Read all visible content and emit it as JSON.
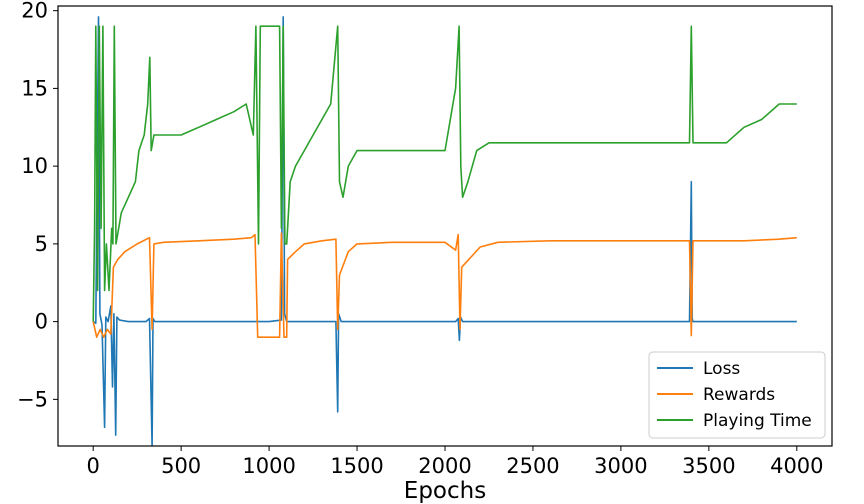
{
  "chart_data": {
    "type": "line",
    "title": "",
    "xlabel": "Epochs",
    "ylabel": "",
    "xlim": [
      -200,
      4200
    ],
    "ylim": [
      -8,
      20.3
    ],
    "xticks": [
      0,
      500,
      1000,
      1500,
      2000,
      2500,
      3000,
      3500,
      4000
    ],
    "yticks": [
      -5,
      0,
      5,
      10,
      15,
      20
    ],
    "ytick_labels": [
      "−5",
      "0",
      "5",
      "10",
      "15",
      "20"
    ],
    "grid": false,
    "legend": {
      "position": "bottom-right"
    },
    "series": [
      {
        "name": "Loss",
        "color": "#1f77b4",
        "points": [
          [
            0,
            0
          ],
          [
            15,
            -0.1
          ],
          [
            30,
            19.6
          ],
          [
            38,
            0.5
          ],
          [
            50,
            -0.2
          ],
          [
            65,
            -6.8
          ],
          [
            72,
            0.3
          ],
          [
            85,
            0
          ],
          [
            100,
            1
          ],
          [
            110,
            -4.2
          ],
          [
            118,
            0.5
          ],
          [
            128,
            -7.3
          ],
          [
            135,
            0.3
          ],
          [
            150,
            0.1
          ],
          [
            200,
            0
          ],
          [
            300,
            0
          ],
          [
            320,
            0.2
          ],
          [
            335,
            -8
          ],
          [
            340,
            0.2
          ],
          [
            350,
            0
          ],
          [
            600,
            0
          ],
          [
            900,
            0
          ],
          [
            1000,
            0
          ],
          [
            1070,
            0.1
          ],
          [
            1080,
            19.6
          ],
          [
            1088,
            0.5
          ],
          [
            1100,
            0
          ],
          [
            1380,
            0
          ],
          [
            1390,
            -5.8
          ],
          [
            1395,
            0.5
          ],
          [
            1410,
            0
          ],
          [
            1800,
            0
          ],
          [
            2060,
            0
          ],
          [
            2075,
            0.2
          ],
          [
            2082,
            -1.2
          ],
          [
            2088,
            0.3
          ],
          [
            2100,
            0
          ],
          [
            2500,
            0
          ],
          [
            3000,
            0
          ],
          [
            3390,
            0
          ],
          [
            3400,
            9
          ],
          [
            3405,
            0.2
          ],
          [
            3410,
            0
          ],
          [
            3800,
            0
          ],
          [
            4000,
            0
          ]
        ]
      },
      {
        "name": "Rewards",
        "color": "#ff7f0e",
        "points": [
          [
            0,
            0
          ],
          [
            20,
            -1
          ],
          [
            40,
            -0.5
          ],
          [
            60,
            -1
          ],
          [
            80,
            -0.5
          ],
          [
            100,
            -0.8
          ],
          [
            115,
            3.5
          ],
          [
            140,
            4
          ],
          [
            180,
            4.5
          ],
          [
            250,
            5
          ],
          [
            320,
            5.4
          ],
          [
            335,
            -0.5
          ],
          [
            345,
            5
          ],
          [
            400,
            5.1
          ],
          [
            600,
            5.2
          ],
          [
            800,
            5.3
          ],
          [
            900,
            5.4
          ],
          [
            920,
            5.6
          ],
          [
            935,
            -1
          ],
          [
            1000,
            -1
          ],
          [
            1060,
            -1
          ],
          [
            1070,
            5.7
          ],
          [
            1085,
            -1
          ],
          [
            1100,
            -1
          ],
          [
            1105,
            4
          ],
          [
            1150,
            4.5
          ],
          [
            1200,
            5
          ],
          [
            1300,
            5.2
          ],
          [
            1380,
            5.3
          ],
          [
            1390,
            -0.5
          ],
          [
            1400,
            3
          ],
          [
            1450,
            4.5
          ],
          [
            1500,
            5
          ],
          [
            1700,
            5.1
          ],
          [
            2000,
            5.1
          ],
          [
            2060,
            4.6
          ],
          [
            2075,
            5.6
          ],
          [
            2085,
            -0.5
          ],
          [
            2095,
            3.5
          ],
          [
            2200,
            4.8
          ],
          [
            2300,
            5.1
          ],
          [
            2600,
            5.2
          ],
          [
            3000,
            5.2
          ],
          [
            3390,
            5.2
          ],
          [
            3400,
            -0.9
          ],
          [
            3410,
            5.2
          ],
          [
            3700,
            5.2
          ],
          [
            3900,
            5.3
          ],
          [
            4000,
            5.4
          ]
        ]
      },
      {
        "name": "Playing Time",
        "color": "#2ca02c",
        "points": [
          [
            0,
            0
          ],
          [
            8,
            6
          ],
          [
            15,
            19
          ],
          [
            25,
            2
          ],
          [
            35,
            19
          ],
          [
            45,
            6
          ],
          [
            55,
            19
          ],
          [
            65,
            2
          ],
          [
            75,
            5
          ],
          [
            90,
            2
          ],
          [
            105,
            6
          ],
          [
            112,
            5
          ],
          [
            120,
            19
          ],
          [
            130,
            5
          ],
          [
            145,
            6
          ],
          [
            160,
            7
          ],
          [
            200,
            8
          ],
          [
            240,
            9
          ],
          [
            260,
            11
          ],
          [
            290,
            12
          ],
          [
            310,
            14
          ],
          [
            322,
            17
          ],
          [
            330,
            11
          ],
          [
            345,
            12
          ],
          [
            400,
            12
          ],
          [
            500,
            12
          ],
          [
            600,
            12.5
          ],
          [
            700,
            13
          ],
          [
            800,
            13.5
          ],
          [
            870,
            14
          ],
          [
            910,
            12
          ],
          [
            925,
            19
          ],
          [
            940,
            5
          ],
          [
            950,
            19
          ],
          [
            1000,
            19
          ],
          [
            1060,
            19
          ],
          [
            1070,
            6
          ],
          [
            1080,
            19
          ],
          [
            1090,
            5
          ],
          [
            1100,
            5
          ],
          [
            1120,
            9
          ],
          [
            1150,
            10
          ],
          [
            1200,
            11
          ],
          [
            1250,
            12
          ],
          [
            1300,
            13
          ],
          [
            1350,
            14
          ],
          [
            1390,
            19
          ],
          [
            1400,
            9
          ],
          [
            1420,
            8
          ],
          [
            1450,
            10
          ],
          [
            1500,
            11
          ],
          [
            1700,
            11
          ],
          [
            1900,
            11
          ],
          [
            2000,
            11
          ],
          [
            2060,
            15
          ],
          [
            2080,
            19
          ],
          [
            2090,
            10
          ],
          [
            2100,
            8
          ],
          [
            2130,
            9
          ],
          [
            2180,
            11
          ],
          [
            2250,
            11.5
          ],
          [
            2500,
            11.5
          ],
          [
            2800,
            11.5
          ],
          [
            3000,
            11.5
          ],
          [
            3200,
            11.5
          ],
          [
            3390,
            11.5
          ],
          [
            3400,
            19
          ],
          [
            3410,
            11.5
          ],
          [
            3600,
            11.5
          ],
          [
            3700,
            12.5
          ],
          [
            3800,
            13
          ],
          [
            3900,
            14
          ],
          [
            4000,
            14
          ]
        ]
      }
    ]
  }
}
